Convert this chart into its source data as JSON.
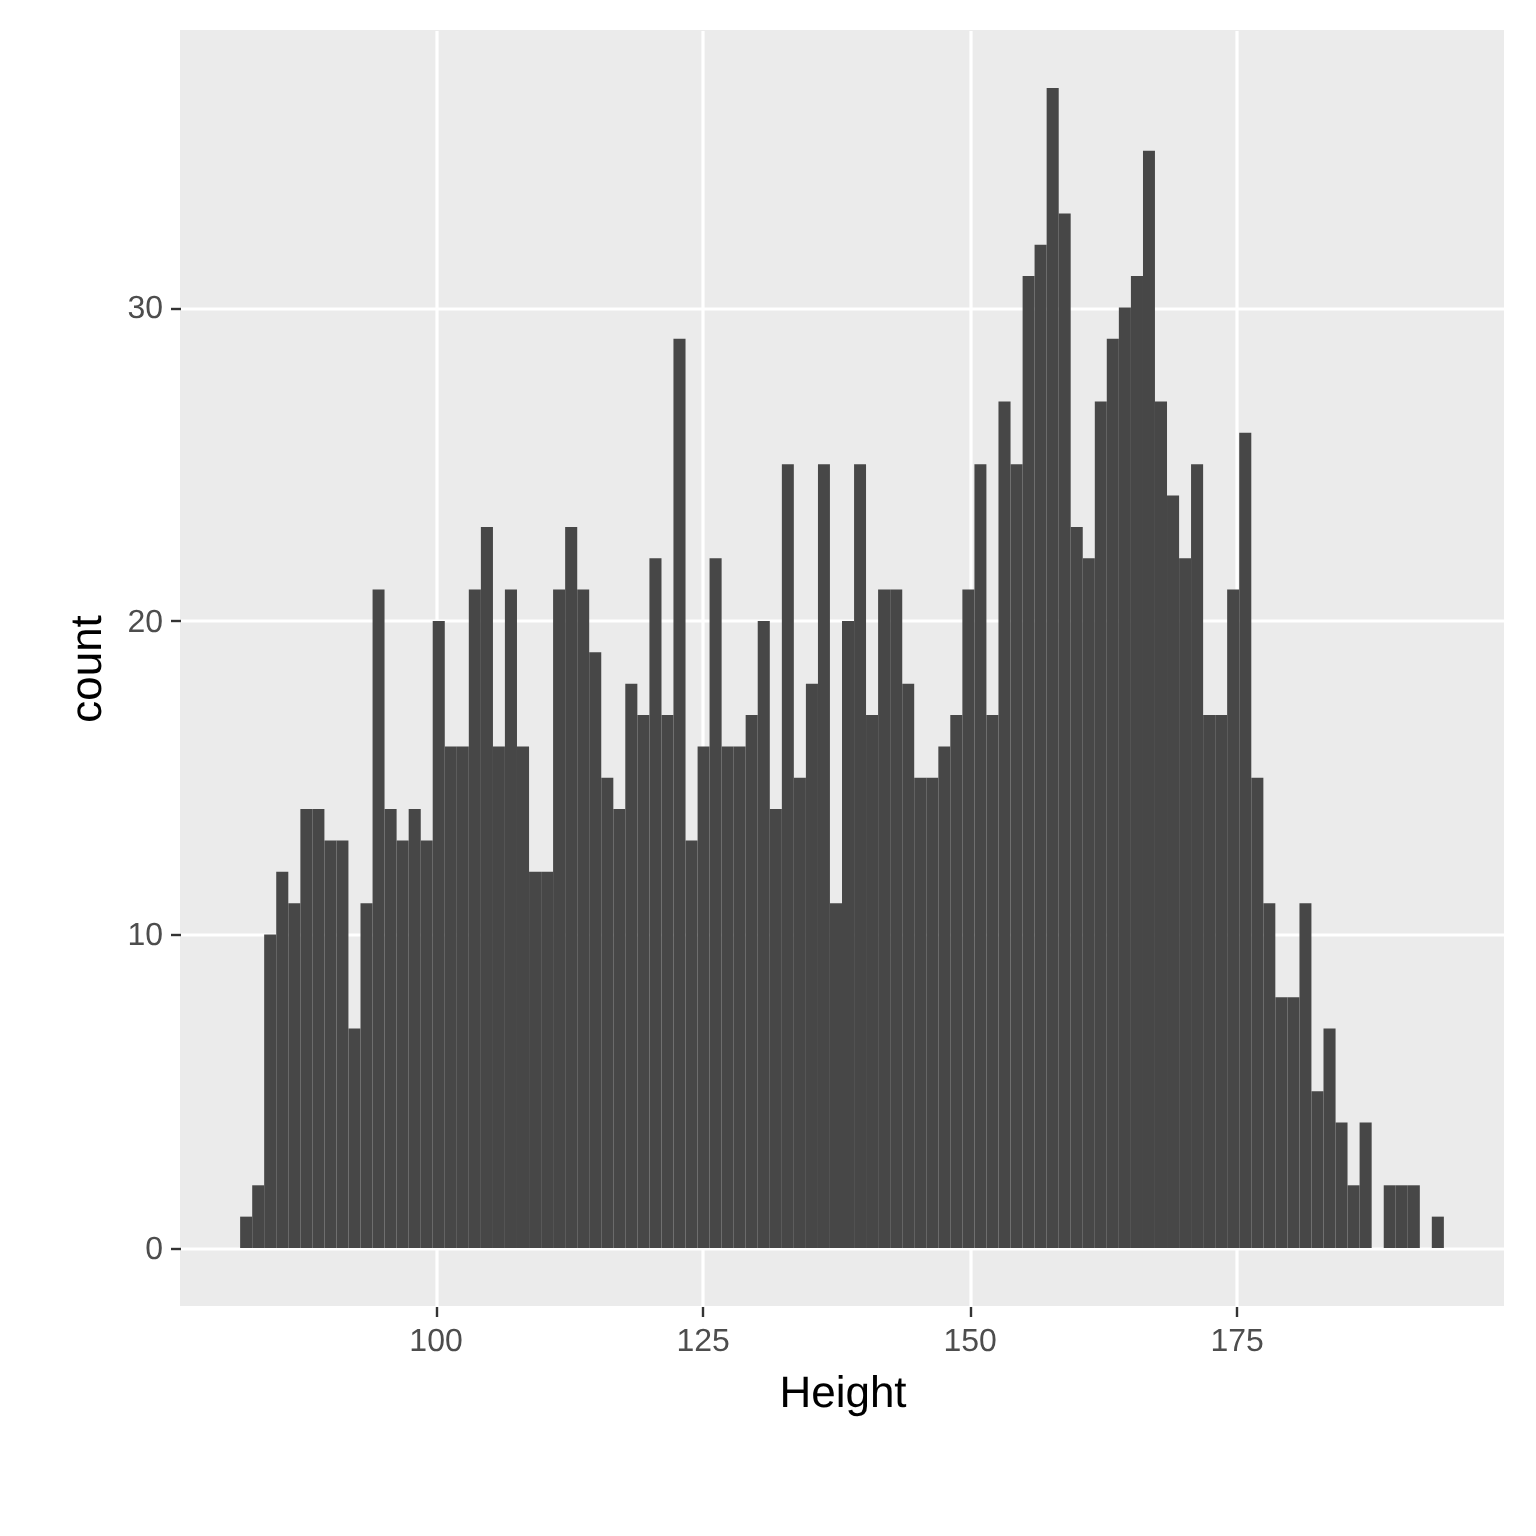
{
  "chart_data": {
    "type": "histogram",
    "xlabel": "Height",
    "ylabel": "count",
    "color": "#474747",
    "bins": [
      81.75,
      82.88,
      84.0,
      85.13,
      86.26,
      87.39,
      88.51,
      89.64,
      90.77,
      91.89,
      93.02,
      94.15,
      95.27,
      96.4,
      97.53,
      98.66,
      99.78,
      100.91,
      102.04,
      103.16,
      104.29,
      105.42,
      106.54,
      107.67,
      108.8,
      109.93,
      111.05,
      112.18,
      113.31,
      114.43,
      115.56,
      116.69,
      117.81,
      118.94,
      120.07,
      121.2,
      122.32,
      123.45,
      124.58,
      125.7,
      126.83,
      127.96,
      129.08,
      130.21,
      131.34,
      132.47,
      133.59,
      134.72,
      135.85,
      136.97,
      138.1,
      139.23,
      140.35,
      141.48,
      142.61,
      143.74,
      144.86,
      145.99,
      147.12,
      148.24,
      149.37,
      150.5,
      151.62,
      152.75,
      153.88,
      155.01,
      156.13,
      157.26,
      158.39,
      159.51,
      160.64,
      161.77,
      162.89,
      164.02,
      165.15,
      166.28,
      167.4,
      168.53,
      169.66,
      170.78,
      171.91,
      173.04,
      174.16,
      175.29,
      176.42,
      177.55,
      178.67,
      179.8,
      180.93,
      182.05,
      183.18,
      184.31,
      185.43,
      186.56,
      187.69,
      188.82,
      189.94,
      191.07,
      192.2,
      193.32,
      194.45
    ],
    "values": [
      1,
      2,
      10,
      12,
      11,
      14,
      14,
      13,
      13,
      7,
      11,
      21,
      14,
      13,
      14,
      13,
      20,
      16,
      16,
      21,
      23,
      16,
      21,
      16,
      12,
      12,
      21,
      23,
      21,
      19,
      15,
      14,
      18,
      17,
      22,
      17,
      29,
      13,
      16,
      22,
      16,
      16,
      17,
      20,
      14,
      25,
      15,
      18,
      25,
      11,
      20,
      25,
      17,
      21,
      21,
      18,
      15,
      15,
      16,
      17,
      21,
      25,
      17,
      27,
      25,
      31,
      32,
      37,
      33,
      23,
      22,
      27,
      29,
      30,
      31,
      35,
      27,
      24,
      22,
      25,
      17,
      17,
      21,
      26,
      15,
      11,
      8,
      8,
      11,
      5,
      7,
      4,
      2,
      4,
      0,
      2,
      2,
      2,
      0,
      1
    ],
    "xlim": [
      76.12,
      200.08
    ],
    "ylim": [
      -1.85,
      38.85
    ],
    "xticks": [
      100,
      125,
      150,
      175
    ],
    "yticks": [
      0,
      10,
      20,
      30
    ],
    "grid": true
  }
}
